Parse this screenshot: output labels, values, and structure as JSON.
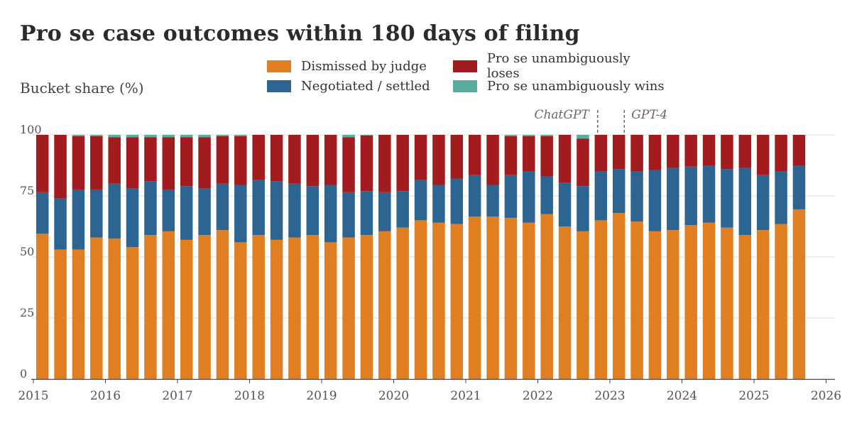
{
  "chart_data": {
    "type": "bar",
    "stacked": true,
    "title": "Pro se case outcomes within 180 days of filing",
    "ylabel": "Bucket share (%)",
    "xlabel": "",
    "ylim": [
      0,
      100
    ],
    "yticks": [
      "0",
      "25",
      "50",
      "75",
      "100"
    ],
    "xlim": [
      2015.0,
      2026.2
    ],
    "xticks": [
      "2015",
      "2016",
      "2017",
      "2018",
      "2019",
      "2020",
      "2021",
      "2022",
      "2023",
      "2024",
      "2025",
      "2026"
    ],
    "grid": true,
    "legend_position": "top",
    "x": [
      2015.125,
      2015.375,
      2015.625,
      2015.875,
      2016.125,
      2016.375,
      2016.625,
      2016.875,
      2017.125,
      2017.375,
      2017.625,
      2017.875,
      2018.125,
      2018.375,
      2018.625,
      2018.875,
      2019.125,
      2019.375,
      2019.625,
      2019.875,
      2020.125,
      2020.375,
      2020.625,
      2020.875,
      2021.125,
      2021.375,
      2021.625,
      2021.875,
      2022.125,
      2022.375,
      2022.625,
      2022.875,
      2023.125,
      2023.375,
      2023.625,
      2023.875,
      2024.125,
      2024.375,
      2024.625,
      2024.875,
      2025.125,
      2025.375,
      2025.625
    ],
    "series": [
      {
        "name": "Dismissed by judge",
        "color": "#e07f22",
        "values": [
          59.5,
          53,
          53,
          58,
          57.5,
          54,
          59,
          60.5,
          57,
          59,
          61,
          56,
          59,
          57,
          58,
          59,
          56,
          58,
          59,
          60.5,
          62,
          65,
          64,
          63.5,
          66.5,
          66.5,
          66,
          64,
          67.5,
          62.5,
          60.5,
          65,
          68,
          64.5,
          60.5,
          61,
          63,
          64,
          62,
          59,
          61,
          63.5,
          69.5
        ]
      },
      {
        "name": "Negotiated / settled",
        "color": "#2d6592",
        "values": [
          17,
          21,
          24.5,
          19.5,
          22.5,
          24,
          22,
          17,
          22,
          19,
          19,
          23.5,
          22.5,
          24,
          22,
          20,
          23.5,
          18.5,
          18,
          16,
          15,
          16.5,
          15.5,
          18.5,
          17,
          13,
          17.5,
          21,
          15.5,
          18,
          18.5,
          20,
          18,
          20.5,
          25,
          25.5,
          24,
          23.5,
          24,
          27.5,
          22.5,
          21.5,
          18
        ]
      },
      {
        "name": "Pro se unambiguously loses",
        "color": "#a21b1f",
        "values": [
          23.5,
          26,
          22,
          22,
          19,
          21,
          18,
          21.5,
          20,
          21,
          19.5,
          20,
          18.5,
          19,
          20,
          21,
          20.5,
          22.5,
          22.8,
          23.5,
          23,
          18.5,
          20.5,
          18,
          16.5,
          20.5,
          16,
          14.5,
          16.5,
          19.5,
          19.5,
          15,
          14,
          15,
          14.5,
          13.5,
          13,
          12.5,
          14,
          13.5,
          16.5,
          15,
          12.5
        ]
      },
      {
        "name": "Pro se unambiguously wins",
        "color": "#57ae9f",
        "values": [
          0,
          0,
          0.5,
          0.5,
          1,
          1,
          1,
          1,
          1,
          1,
          0.5,
          0.5,
          0,
          0,
          0,
          0,
          0,
          1,
          0.2,
          0,
          0,
          0,
          0,
          0,
          0,
          0,
          0.5,
          0.5,
          0.5,
          0,
          1.5,
          0,
          0,
          0,
          0,
          0,
          0,
          0,
          0,
          0,
          0,
          0,
          0
        ]
      }
    ],
    "annotations": [
      {
        "text": "ChatGPT",
        "x": 2022.83
      },
      {
        "text": "GPT-4",
        "x": 2023.2
      }
    ]
  }
}
